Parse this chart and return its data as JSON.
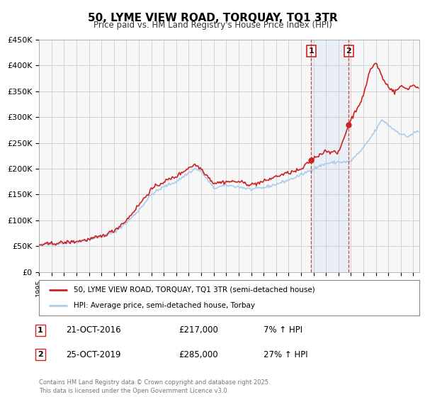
{
  "title": "50, LYME VIEW ROAD, TORQUAY, TQ1 3TR",
  "subtitle": "Price paid vs. HM Land Registry's House Price Index (HPI)",
  "legend_line1": "50, LYME VIEW ROAD, TORQUAY, TQ1 3TR (semi-detached house)",
  "legend_line2": "HPI: Average price, semi-detached house, Torbay",
  "ylim": [
    0,
    450000
  ],
  "xlim_start": 1995.0,
  "xlim_end": 2025.5,
  "grid_color": "#cccccc",
  "background_color": "#ffffff",
  "plot_bg_color": "#f7f7f7",
  "hpi_color": "#aaccee",
  "price_color": "#cc2222",
  "sale1_date": 2016.81,
  "sale1_price": 217000,
  "sale1_label": "1",
  "sale1_text": "21-OCT-2016",
  "sale1_amount": "£217,000",
  "sale1_pct": "7% ↑ HPI",
  "sale2_date": 2019.82,
  "sale2_price": 285000,
  "sale2_label": "2",
  "sale2_text": "25-OCT-2019",
  "sale2_amount": "£285,000",
  "sale2_pct": "27% ↑ HPI",
  "footer": "Contains HM Land Registry data © Crown copyright and database right 2025.\nThis data is licensed under the Open Government Licence v3.0.",
  "yticks": [
    0,
    50000,
    100000,
    150000,
    200000,
    250000,
    300000,
    350000,
    400000,
    450000
  ],
  "ytick_labels": [
    "£0",
    "£50K",
    "£100K",
    "£150K",
    "£200K",
    "£250K",
    "£300K",
    "£350K",
    "£400K",
    "£450K"
  ],
  "xtick_years": [
    1995,
    1996,
    1997,
    1998,
    1999,
    2000,
    2001,
    2002,
    2003,
    2004,
    2005,
    2006,
    2007,
    2008,
    2009,
    2010,
    2011,
    2012,
    2013,
    2014,
    2015,
    2016,
    2017,
    2018,
    2019,
    2020,
    2021,
    2022,
    2023,
    2024,
    2025
  ]
}
